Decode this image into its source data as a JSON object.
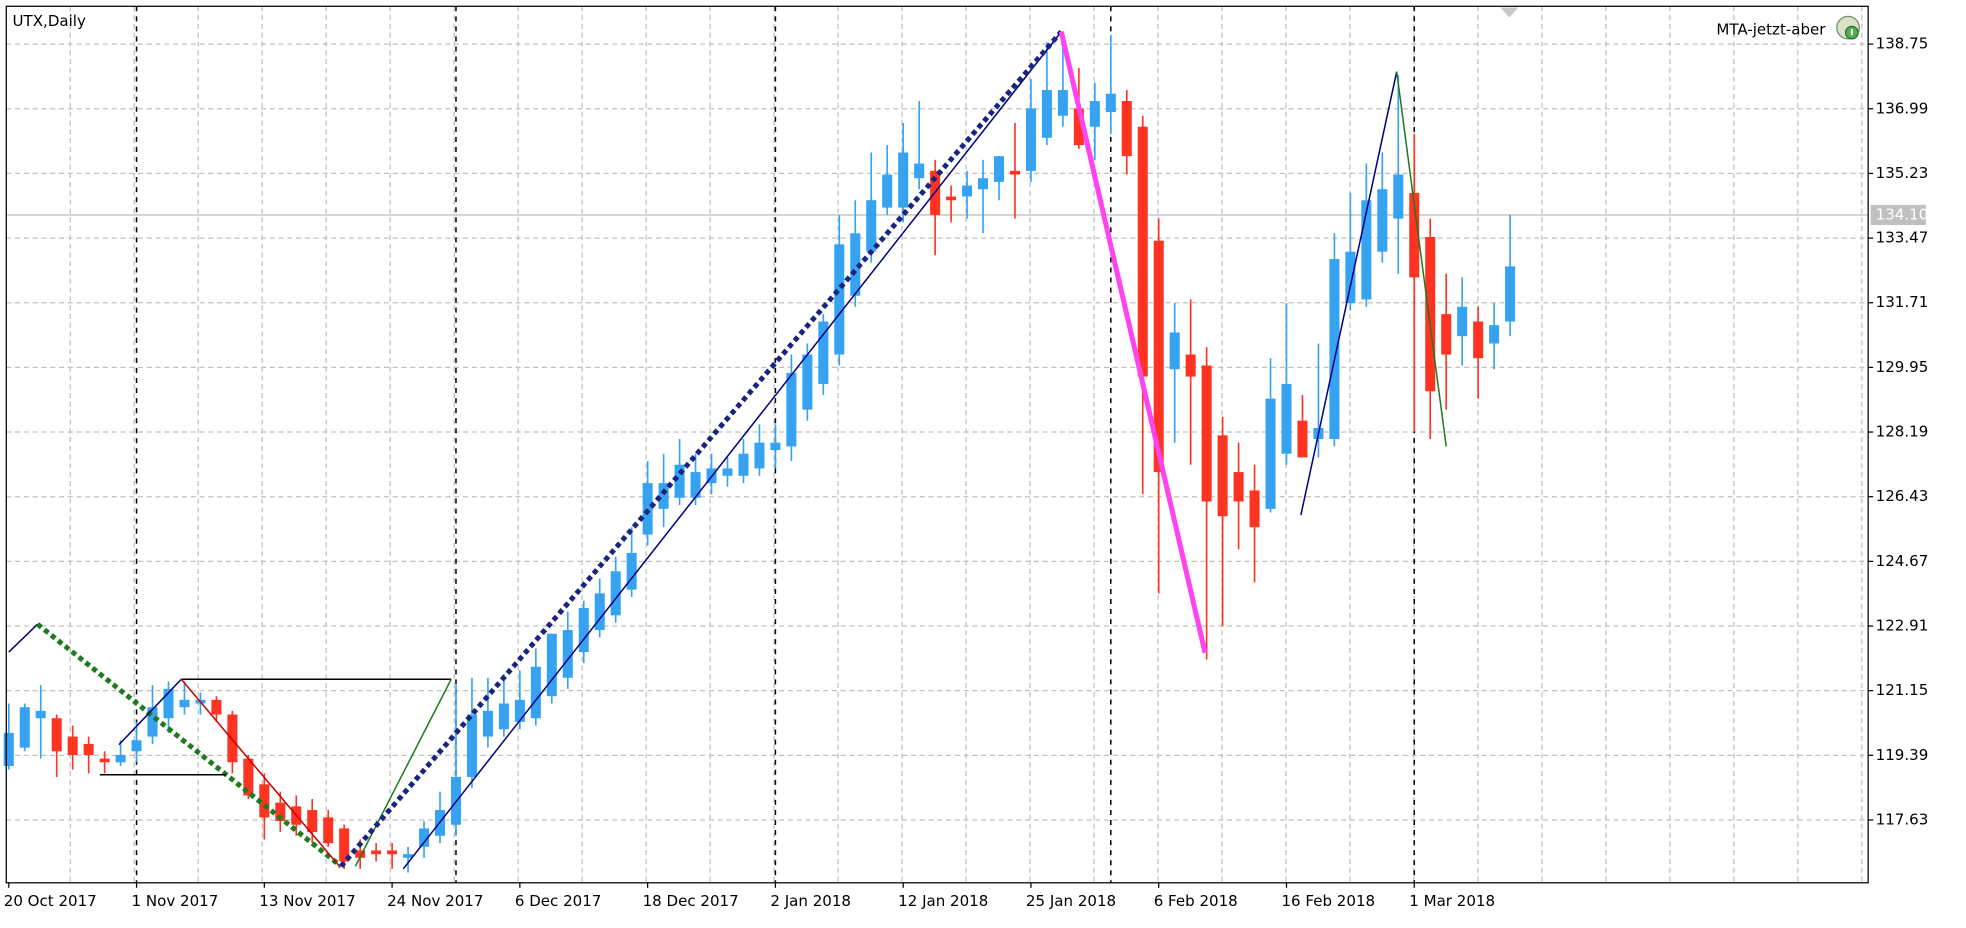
{
  "chart_data": {
    "type": "candlestick",
    "title": "UTX,Daily",
    "expert_name": "MTA-jetzt-aber",
    "categories": [
      "20 Oct 2017",
      null,
      null,
      null,
      null,
      null,
      null,
      null,
      "1 Nov 2017",
      null,
      null,
      null,
      null,
      null,
      null,
      null,
      "13 Nov 2017",
      null,
      null,
      null,
      null,
      null,
      null,
      null,
      "24 Nov 2017",
      null,
      null,
      null,
      null,
      null,
      null,
      null,
      "6 Dec 2017",
      null,
      null,
      null,
      null,
      null,
      null,
      null,
      "18 Dec 2017",
      null,
      null,
      null,
      null,
      null,
      null,
      null,
      "2 Jan 2018",
      null,
      null,
      null,
      null,
      null,
      null,
      null,
      "12 Jan 2018",
      null,
      null,
      null,
      null,
      null,
      null,
      null,
      "25 Jan 2018",
      null,
      null,
      null,
      null,
      null,
      null,
      null,
      "6 Feb 2018",
      null,
      null,
      null,
      null,
      null,
      null,
      null,
      "16 Feb 2018",
      null,
      null,
      null,
      null,
      null,
      null,
      null,
      "1 Mar 2018",
      null,
      null,
      null,
      null,
      null,
      null
    ],
    "open": [
      119.1,
      119.6,
      120.4,
      120.4,
      119.9,
      119.7,
      119.3,
      119.2,
      119.5,
      119.9,
      120.4,
      120.7,
      120.8,
      120.9,
      120.5,
      119.3,
      118.6,
      118.1,
      118.0,
      117.9,
      117.7,
      117.4,
      116.8,
      116.8,
      116.8,
      116.6,
      116.9,
      117.2,
      117.5,
      118.8,
      119.9,
      120.1,
      120.3,
      120.4,
      121.0,
      121.5,
      122.2,
      122.8,
      123.2,
      123.9,
      125.4,
      126.1,
      126.4,
      126.4,
      126.8,
      127.0,
      127.0,
      127.2,
      127.7,
      127.8,
      128.8,
      129.5,
      130.3,
      131.9,
      133.1,
      134.3,
      134.3,
      135.1,
      135.3,
      134.6,
      134.6,
      134.8,
      135.0,
      135.3,
      135.3,
      136.2,
      136.8,
      137.0,
      136.5,
      136.9,
      137.2,
      136.5,
      133.4,
      129.9,
      130.3,
      130.0,
      128.1,
      127.1,
      126.6,
      126.1,
      127.6,
      128.5,
      128.0,
      128.0,
      131.7,
      131.8,
      133.1,
      134.0,
      134.7,
      133.5,
      131.4,
      130.8,
      131.2,
      130.6,
      131.2
    ],
    "high": [
      120.8,
      120.8,
      121.3,
      120.5,
      120.2,
      119.9,
      119.5,
      119.8,
      120.3,
      121.3,
      121.4,
      121.4,
      121.1,
      121.0,
      120.6,
      119.4,
      118.9,
      118.4,
      118.3,
      118.2,
      117.9,
      117.5,
      117.1,
      117.0,
      117.0,
      116.9,
      117.6,
      118.4,
      121.3,
      121.5,
      121.5,
      121.6,
      121.7,
      122.3,
      122.7,
      123.3,
      123.6,
      124.2,
      124.8,
      125.6,
      127.4,
      127.6,
      128.0,
      127.6,
      127.6,
      127.5,
      128.0,
      128.4,
      128.4,
      130.3,
      130.6,
      131.4,
      134.1,
      134.5,
      135.8,
      136.0,
      136.6,
      137.2,
      135.6,
      134.9,
      135.3,
      135.6,
      135.7,
      136.6,
      137.8,
      138.8,
      139.0,
      138.1,
      137.7,
      139.0,
      137.5,
      136.8,
      134.0,
      131.7,
      131.8,
      130.5,
      128.6,
      127.9,
      127.3,
      130.2,
      131.7,
      129.2,
      130.6,
      133.6,
      134.7,
      135.5,
      135.8,
      137.9,
      136.3,
      134.0,
      132.5,
      132.4,
      131.6,
      131.7,
      134.1
    ],
    "low": [
      119.0,
      119.5,
      119.3,
      118.8,
      119.0,
      118.9,
      118.9,
      119.1,
      119.2,
      119.7,
      120.0,
      120.5,
      120.5,
      120.3,
      118.9,
      118.2,
      117.1,
      117.3,
      117.2,
      117.0,
      116.9,
      116.3,
      116.3,
      116.5,
      116.3,
      116.2,
      116.6,
      117.0,
      117.2,
      118.5,
      119.6,
      119.9,
      120.1,
      120.2,
      120.8,
      121.2,
      121.9,
      122.6,
      123.0,
      123.7,
      125.1,
      125.6,
      126.2,
      126.2,
      126.5,
      126.7,
      126.8,
      127.0,
      127.2,
      127.4,
      128.5,
      129.2,
      130.0,
      131.6,
      132.8,
      134.1,
      133.9,
      134.8,
      133.0,
      133.9,
      134.0,
      133.6,
      134.5,
      134.0,
      135.0,
      136.0,
      136.5,
      135.9,
      135.6,
      136.3,
      135.2,
      126.5,
      123.8,
      127.9,
      127.3,
      122.0,
      122.9,
      125.0,
      124.1,
      126.0,
      127.3,
      127.5,
      127.5,
      127.8,
      131.5,
      131.6,
      132.8,
      132.5,
      128.2,
      128.0,
      128.8,
      130.0,
      129.1,
      129.9,
      130.8
    ],
    "close": [
      120.0,
      120.7,
      120.6,
      119.5,
      119.4,
      119.4,
      119.2,
      119.4,
      119.8,
      120.7,
      121.2,
      120.9,
      120.9,
      120.5,
      119.2,
      118.3,
      117.7,
      117.6,
      117.5,
      117.3,
      117.0,
      116.5,
      116.6,
      116.7,
      116.7,
      116.7,
      117.4,
      117.9,
      118.8,
      120.5,
      120.6,
      120.8,
      120.9,
      121.8,
      122.7,
      122.8,
      123.4,
      123.8,
      124.4,
      124.9,
      126.8,
      126.8,
      127.3,
      127.1,
      127.2,
      127.2,
      127.6,
      127.9,
      127.9,
      129.8,
      130.3,
      131.2,
      133.3,
      133.6,
      134.5,
      135.2,
      135.8,
      135.5,
      134.1,
      134.5,
      134.9,
      135.1,
      135.7,
      135.2,
      137.0,
      137.5,
      137.5,
      136.0,
      137.2,
      137.4,
      135.7,
      129.7,
      127.1,
      130.9,
      129.7,
      126.3,
      125.9,
      126.3,
      125.6,
      129.1,
      129.5,
      127.5,
      128.3,
      132.9,
      133.1,
      134.5,
      134.8,
      135.2,
      132.4,
      129.3,
      130.3,
      131.6,
      130.2,
      131.1,
      132.7
    ],
    "up_color": "#36a2f2",
    "down_color": "#ff3322",
    "ylim": [
      115.92,
      139.78
    ],
    "yticks": [
      117.63,
      119.39,
      121.15,
      122.91,
      124.67,
      126.43,
      128.19,
      129.95,
      131.71,
      133.47,
      135.23,
      136.99,
      138.75
    ],
    "grid": true,
    "current_price": {
      "value": 134.1,
      "label": "134.10"
    },
    "overlays": [
      {
        "color": "#000080",
        "style": "thin",
        "points": [
          [
            0,
            122.2
          ],
          [
            1.8,
            122.96
          ]
        ]
      },
      {
        "color": "#1f7a1f",
        "style": "thick-dotted",
        "points": [
          [
            1.8,
            122.96
          ],
          [
            20.8,
            116.37
          ]
        ]
      },
      {
        "color": "#000080",
        "style": "thin",
        "points": [
          [
            6.9,
            119.68
          ],
          [
            10.8,
            121.46
          ]
        ]
      },
      {
        "color": "#000000",
        "style": "thin",
        "points": [
          [
            10.8,
            121.46
          ],
          [
            27.7,
            121.46
          ]
        ]
      },
      {
        "color": "#000000",
        "style": "thin",
        "points": [
          [
            5.7,
            118.86
          ],
          [
            13.6,
            118.86
          ]
        ]
      },
      {
        "color": "#cc0000",
        "style": "thin",
        "points": [
          [
            10.8,
            121.46
          ],
          [
            20.7,
            116.37
          ]
        ]
      },
      {
        "color": "#1f7a1f",
        "style": "thin",
        "points": [
          [
            21.7,
            116.37
          ],
          [
            27.7,
            121.46
          ]
        ]
      },
      {
        "color": "#000080",
        "style": "thin",
        "points": [
          [
            24.7,
            116.3
          ],
          [
            65.9,
            139.09
          ]
        ]
      },
      {
        "color": "#1a237e",
        "style": "thick-dotted",
        "points": [
          [
            20.8,
            116.37
          ],
          [
            65.9,
            139.09
          ]
        ]
      },
      {
        "color": "#ff44ee",
        "style": "thick",
        "points": [
          [
            65.9,
            139.09
          ],
          [
            74.9,
            122.18
          ]
        ]
      },
      {
        "color": "#000080",
        "style": "thin",
        "points": [
          [
            80.9,
            125.93
          ],
          [
            86.9,
            138.0
          ]
        ]
      },
      {
        "color": "#1f7a1f",
        "style": "thin",
        "points": [
          [
            86.9,
            138.0
          ],
          [
            90.0,
            127.8
          ]
        ]
      }
    ]
  }
}
